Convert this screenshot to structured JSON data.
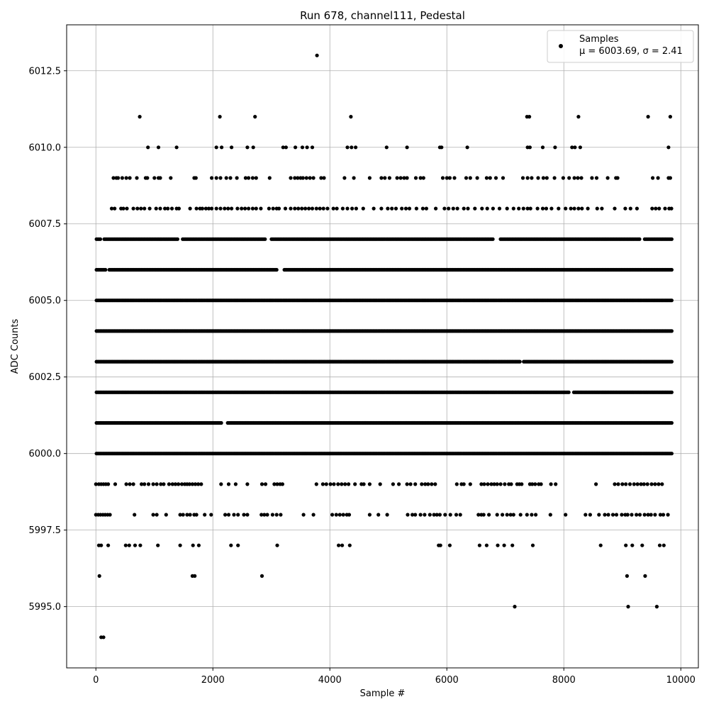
{
  "chart_data": {
    "type": "scatter",
    "title": "Run 678, channel111, Pedestal",
    "xlabel": "Sample #",
    "ylabel": "ADC Counts",
    "xlim": [
      -500,
      10300
    ],
    "ylim": [
      5993.0,
      6014.0
    ],
    "xticks": [
      0,
      2000,
      4000,
      6000,
      8000,
      10000
    ],
    "xtick_labels": [
      "0",
      "2000",
      "4000",
      "6000",
      "8000",
      "10000"
    ],
    "yticks": [
      5995.0,
      5997.5,
      6000.0,
      6002.5,
      6005.0,
      6007.5,
      6010.0,
      6012.5
    ],
    "ytick_labels": [
      "5995.0",
      "5997.5",
      "6000.0",
      "6002.5",
      "6005.0",
      "6007.5",
      "6010.0",
      "6012.5"
    ],
    "grid": true,
    "legend": {
      "placement": "top-right",
      "entries": [
        "Samples",
        "μ = 6003.69, σ = 2.41"
      ]
    },
    "series": [
      {
        "name": "Samples",
        "color": "#000000",
        "x_range": [
          0,
          9850
        ],
        "levels": [
          {
            "y": 6013,
            "x": [
              3780
            ]
          },
          {
            "y": 6011,
            "x": [
              750,
              2120,
              2720,
              4360,
              7370,
              7410,
              8250,
              9440,
              9820
            ]
          },
          {
            "y": 6010,
            "x": [
              890,
              1070,
              1380,
              2060,
              2150,
              2320,
              2590,
              2690,
              3200,
              3250,
              3410,
              3530,
              3610,
              3700,
              4300,
              4370,
              4440,
              4970,
              5320,
              5880,
              5910,
              6350,
              7380,
              7420,
              7640,
              7850,
              8140,
              8190,
              8280,
              9790
            ]
          },
          {
            "y": 6009,
            "x": [
              300,
              350,
              380,
              450,
              520,
              580,
              700,
              850,
              880,
              1000,
              1070,
              1100,
              1280,
              1680,
              1710,
              1980,
              2060,
              2130,
              2230,
              2300,
              2410,
              2560,
              2610,
              2680,
              2740,
              2970,
              3330,
              3400,
              3450,
              3500,
              3540,
              3600,
              3660,
              3720,
              3850,
              3900,
              4250,
              4410,
              4680,
              4880,
              4940,
              5020,
              5150,
              5210,
              5270,
              5320,
              5470,
              5550,
              5600,
              5930,
              6000,
              6050,
              6130,
              6330,
              6400,
              6520,
              6680,
              6740,
              6840,
              6960,
              7300,
              7380,
              7450,
              7560,
              7650,
              7710,
              7840,
              7990,
              8090,
              8180,
              8240,
              8300,
              8480,
              8560,
              8750,
              8890,
              8920,
              9520,
              9610,
              9790,
              9820
            ]
          },
          {
            "y": 6008,
            "x": [
              270,
              320,
              430,
              470,
              530,
              640,
              710,
              770,
              830,
              920,
              1030,
              1100,
              1180,
              1230,
              1300,
              1380,
              1420,
              1610,
              1720,
              1780,
              1820,
              1880,
              1930,
              1980,
              2060,
              2130,
              2200,
              2260,
              2320,
              2420,
              2490,
              2550,
              2610,
              2680,
              2740,
              2820,
              2960,
              3030,
              3090,
              3130,
              3240,
              3330,
              3400,
              3460,
              3520,
              3580,
              3640,
              3700,
              3770,
              3830,
              3890,
              3960,
              4060,
              4120,
              4220,
              4300,
              4380,
              4450,
              4570,
              4750,
              4880,
              4990,
              5060,
              5130,
              5230,
              5300,
              5360,
              5480,
              5590,
              5650,
              5810,
              5960,
              6030,
              6110,
              6180,
              6290,
              6360,
              6480,
              6600,
              6690,
              6790,
              6900,
              7030,
              7140,
              7230,
              7310,
              7380,
              7430,
              7550,
              7640,
              7700,
              7790,
              7910,
              8030,
              8120,
              8180,
              8250,
              8310,
              8410,
              8570,
              8650,
              8870,
              9050,
              9140,
              9250,
              9510,
              9570,
              9630,
              9730,
              9800,
              9840
            ]
          },
          {
            "y": 5999,
            "x": [
              0,
              50,
              90,
              130,
              170,
              210,
              330,
              520,
              580,
              640,
              780,
              830,
              900,
              980,
              1040,
              1110,
              1160,
              1250,
              1310,
              1360,
              1410,
              1470,
              1520,
              1560,
              1600,
              1650,
              1700,
              1750,
              1800,
              2140,
              2270,
              2390,
              2590,
              2840,
              2900,
              3050,
              3100,
              3150,
              3190,
              3770,
              3880,
              3940,
              4010,
              4070,
              4140,
              4200,
              4260,
              4320,
              4430,
              4540,
              4580,
              4680,
              4860,
              5080,
              5180,
              5320,
              5380,
              5460,
              5570,
              5630,
              5680,
              5740,
              5800,
              6170,
              6250,
              6290,
              6400,
              6590,
              6640,
              6700,
              6760,
              6810,
              6860,
              6920,
              6990,
              7060,
              7100,
              7200,
              7240,
              7280,
              7420,
              7460,
              7510,
              7570,
              7610,
              7780,
              7860,
              8550,
              8870,
              8930,
              9000,
              9060,
              9130,
              9200,
              9260,
              9320,
              9370,
              9430,
              9500,
              9560,
              9620,
              9680
            ]
          },
          {
            "y": 5998,
            "x": [
              0,
              40,
              80,
              120,
              160,
              200,
              240,
              660,
              980,
              1040,
              1200,
              1440,
              1490,
              1560,
              1610,
              1680,
              1720,
              1860,
              1970,
              2210,
              2270,
              2360,
              2430,
              2530,
              2590,
              2830,
              2880,
              2930,
              3020,
              3090,
              3160,
              3550,
              3720,
              4040,
              4110,
              4170,
              4230,
              4290,
              4330,
              4680,
              4830,
              4980,
              5330,
              5410,
              5460,
              5550,
              5620,
              5710,
              5780,
              5830,
              5880,
              5970,
              6060,
              6160,
              6230,
              6540,
              6590,
              6630,
              6720,
              6860,
              6950,
              7030,
              7090,
              7140,
              7260,
              7370,
              7450,
              7520,
              7770,
              8030,
              8370,
              8450,
              8600,
              8700,
              8760,
              8840,
              8900,
              8990,
              9050,
              9090,
              9160,
              9240,
              9300,
              9380,
              9440,
              9490,
              9560,
              9650,
              9700,
              9780
            ]
          },
          {
            "y": 5997,
            "x": [
              50,
              90,
              210,
              510,
              570,
              670,
              760,
              1060,
              1440,
              1660,
              1760,
              2310,
              2430,
              3100,
              4150,
              4210,
              4340,
              5860,
              5890,
              6050,
              6560,
              6680,
              6870,
              6980,
              7120,
              7470,
              8630,
              9060,
              9170,
              9340,
              9640,
              9710
            ]
          },
          {
            "y": 5996,
            "x": [
              60,
              1650,
              1690,
              2840,
              9080,
              9390
            ]
          },
          {
            "y": 5995,
            "x": [
              7160,
              9100,
              9590
            ]
          },
          {
            "y": 5994,
            "x": [
              90,
              130
            ]
          }
        ],
        "dense_levels": [
          6007,
          6006,
          6005,
          6004,
          6003,
          6002,
          6001,
          6000
        ],
        "dense_gaps": {
          "6007": [
            [
              90,
              130
            ],
            [
              1400,
              1480
            ],
            [
              2900,
              3000
            ],
            [
              6800,
              6900
            ],
            [
              9300,
              9380
            ]
          ],
          "6006": [
            [
              180,
              220
            ],
            [
              3100,
              3200
            ]
          ],
          "6005": [],
          "6004": [],
          "6003": [
            [
              7250,
              7300
            ]
          ],
          "6002": [
            [
              8100,
              8150
            ]
          ],
          "6001": [
            [
              2150,
              2250
            ]
          ],
          "6000": [
            [
              9850,
              9860
            ]
          ]
        }
      }
    ]
  }
}
